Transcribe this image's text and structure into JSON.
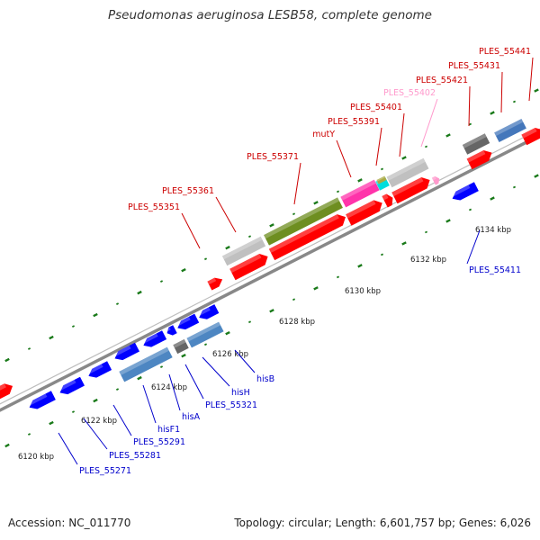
{
  "title": "Pseudomonas aeruginosa LESB58, complete genome",
  "footer": {
    "accession": "Accession: NC_011770",
    "summary": "Topology: circular; Length: 6,601,757 bp; Genes: 6,026"
  },
  "colors": {
    "forward_gene": "#ff0000",
    "reverse_gene": "#0000ff",
    "forward_label": "#cc0000",
    "reverse_label": "#0000cc",
    "pseudogene_label": "#ff99cc",
    "backbone": "#888888",
    "tick": "#1a7a1a"
  },
  "kbp_ticks": [
    "6120 kbp",
    "6122 kbp",
    "6124 kbp",
    "6126 kbp",
    "6128 kbp",
    "6130 kbp",
    "6132 kbp",
    "6134 kbp"
  ],
  "forward_labels": [
    "PLES_55351",
    "PLES_55361",
    "PLES_55371",
    "mutY",
    "PLES_55391",
    "PLES_55401",
    "PLES_55402",
    "PLES_55421",
    "PLES_55431",
    "PLES_55441"
  ],
  "reverse_labels": [
    "PLES_55271",
    "PLES_55281",
    "PLES_55291",
    "hisF1",
    "hisA",
    "PLES_55321",
    "hisH",
    "hisB",
    "PLES_55411"
  ]
}
